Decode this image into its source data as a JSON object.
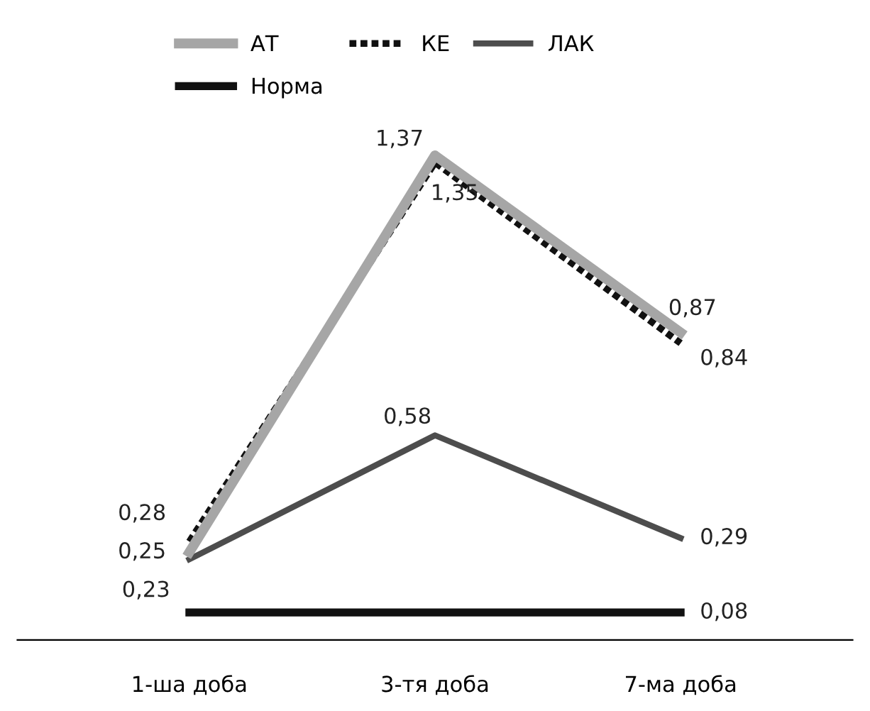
{
  "chart_data": {
    "type": "line",
    "categories": [
      "1-ша доба",
      "3-тя доба",
      "7-ма доба"
    ],
    "tick_labels": "x",
    "grid": false,
    "legend": "top left",
    "marker": "none",
    "series": [
      {
        "name": "АТ",
        "color": "#a6a6a6",
        "values": [
          0.25,
          1.37,
          0.87
        ],
        "value_labels": [
          "0,25",
          "1,37",
          "0,87"
        ],
        "line_style": "solid"
      },
      {
        "name": "КЕ",
        "color": "#111111",
        "values": [
          0.28,
          1.35,
          0.84
        ],
        "value_labels": [
          "0,28",
          "1,35",
          "0,84"
        ],
        "line_style": "dotted"
      },
      {
        "name": "ЛАК",
        "color": "#4d4d4d",
        "values": [
          0.23,
          0.58,
          0.29
        ],
        "value_labels": [
          "0,23",
          "0,58",
          "0,29"
        ],
        "line_style": "solid"
      },
      {
        "name": "Норма",
        "color": "#111111",
        "values": [
          0.08,
          0.08,
          0.08
        ],
        "value_labels": [
          null,
          null,
          "0,08"
        ],
        "line_style": "solid"
      }
    ]
  }
}
